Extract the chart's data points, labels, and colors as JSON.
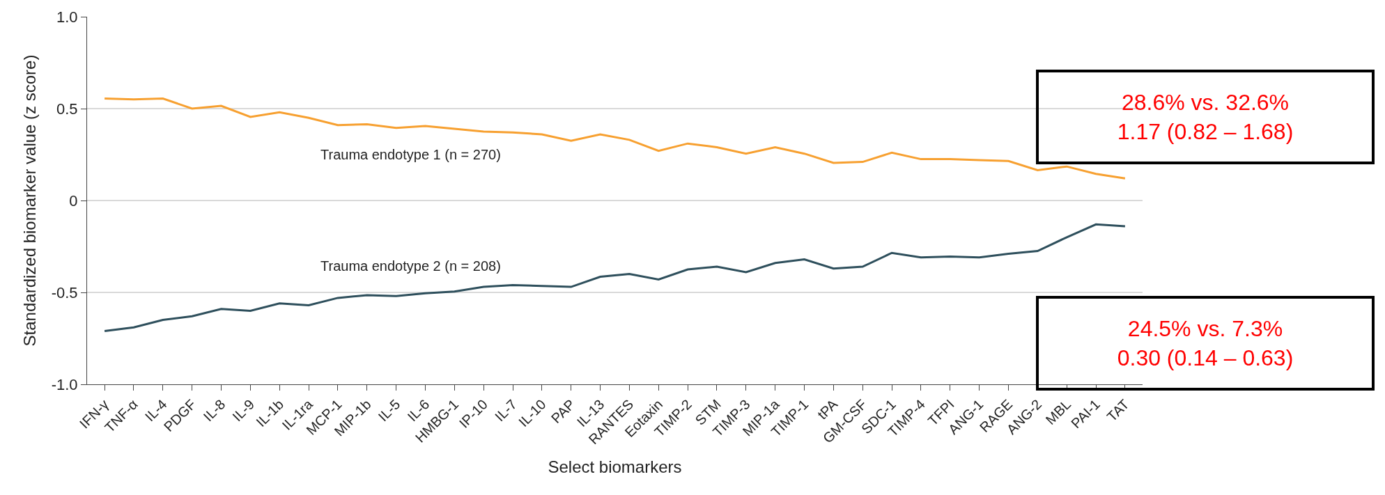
{
  "chart_data": {
    "type": "line",
    "xlabel": "Select biomarkers",
    "ylabel": "Standardized biomarker value (z score)",
    "categories": [
      "IFN-γ",
      "TNF-α",
      "IL-4",
      "PDGF",
      "IL-8",
      "IL-9",
      "IL-1b",
      "IL-1ra",
      "MCP-1",
      "MIP-1b",
      "IL-5",
      "IL-6",
      "HMBG-1",
      "IP-10",
      "IL-7",
      "IL-10",
      "PAP",
      "IL-13",
      "RANTES",
      "Eotaxin",
      "TIMP-2",
      "STM",
      "TIMP-3",
      "MIP-1a",
      "TIMP-1",
      "tPA",
      "GM-CSF",
      "SDC-1",
      "TIMP-4",
      "TFPI",
      "ANG-1",
      "RAGE",
      "ANG-2",
      "MBL",
      "PAI-1",
      "TAT"
    ],
    "series": [
      {
        "name": "Trauma endotype 1 (n = 270)",
        "color": "#f7a030",
        "values": [
          0.555,
          0.55,
          0.555,
          0.5,
          0.515,
          0.455,
          0.48,
          0.45,
          0.41,
          0.415,
          0.395,
          0.405,
          0.39,
          0.375,
          0.37,
          0.36,
          0.325,
          0.36,
          0.33,
          0.27,
          0.31,
          0.29,
          0.255,
          0.29,
          0.255,
          0.205,
          0.21,
          0.26,
          0.225,
          0.225,
          0.22,
          0.215,
          0.165,
          0.185,
          0.145,
          0.12
        ]
      },
      {
        "name": "Trauma endotype 2 (n = 208)",
        "color": "#2e4f5c",
        "values": [
          -0.71,
          -0.69,
          -0.65,
          -0.63,
          -0.59,
          -0.6,
          -0.56,
          -0.57,
          -0.53,
          -0.515,
          -0.52,
          -0.505,
          -0.495,
          -0.47,
          -0.46,
          -0.465,
          -0.47,
          -0.415,
          -0.4,
          -0.43,
          -0.375,
          -0.36,
          -0.39,
          -0.34,
          -0.32,
          -0.37,
          -0.36,
          -0.285,
          -0.31,
          -0.305,
          -0.31,
          -0.29,
          -0.275,
          -0.2,
          -0.13,
          -0.14
        ]
      }
    ],
    "ylim": [
      -1.0,
      1.0
    ],
    "yticks": [
      {
        "value": -1.0,
        "label": "-1.0"
      },
      {
        "value": -0.5,
        "label": "-0.5"
      },
      0,
      0.5,
      {
        "value": 1.0,
        "label": "1.0"
      }
    ],
    "grid": "y",
    "legend": false,
    "marker": "none",
    "line_style": "solid",
    "annotations": [
      "28.6% vs. 32.6%\n1.17 (0.82 – 1.68)",
      "24.5% vs. 7.3%\n0.30 (0.14 – 0.63)"
    ]
  }
}
